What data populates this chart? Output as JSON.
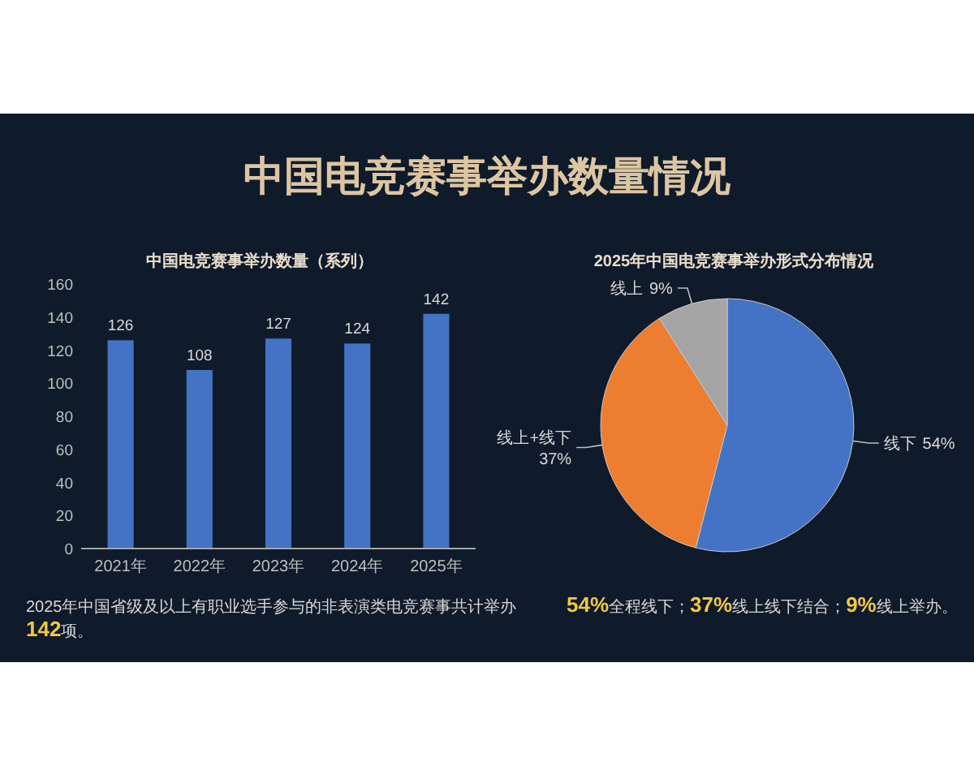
{
  "chart_data": [
    {
      "type": "bar",
      "title": "中国电竞赛事举办数量情况",
      "subtitle": "中国电竞赛事举办数量（系列）",
      "categories": [
        "2021年",
        "2022年",
        "2023年",
        "2024年",
        "2025年"
      ],
      "values": [
        126,
        108,
        127,
        124,
        142
      ],
      "color": "#4472c4",
      "ylim": [
        0,
        160
      ],
      "yticks": [
        0,
        20,
        40,
        60,
        80,
        100,
        120,
        140,
        160
      ],
      "data_labels": true,
      "annotations": [
        "2025年中国省级及以上有职业选手参与的非表演类电竞赛事共计举办**142**项。"
      ]
    },
    {
      "type": "pie",
      "title": "2025年中国电竞赛事举办形式分布情况",
      "categories": [
        "线下",
        "线上+线下",
        "线上"
      ],
      "values": [
        54,
        37,
        9
      ],
      "colors": [
        "#4472c4",
        "#ed7d31",
        "#a5a5a5"
      ],
      "value_labels": [
        "54%",
        "37%",
        "9%"
      ],
      "annotations": [
        "**54%**全程线下；**37%**线上线下结合；**9%**线上举办。"
      ]
    }
  ]
}
